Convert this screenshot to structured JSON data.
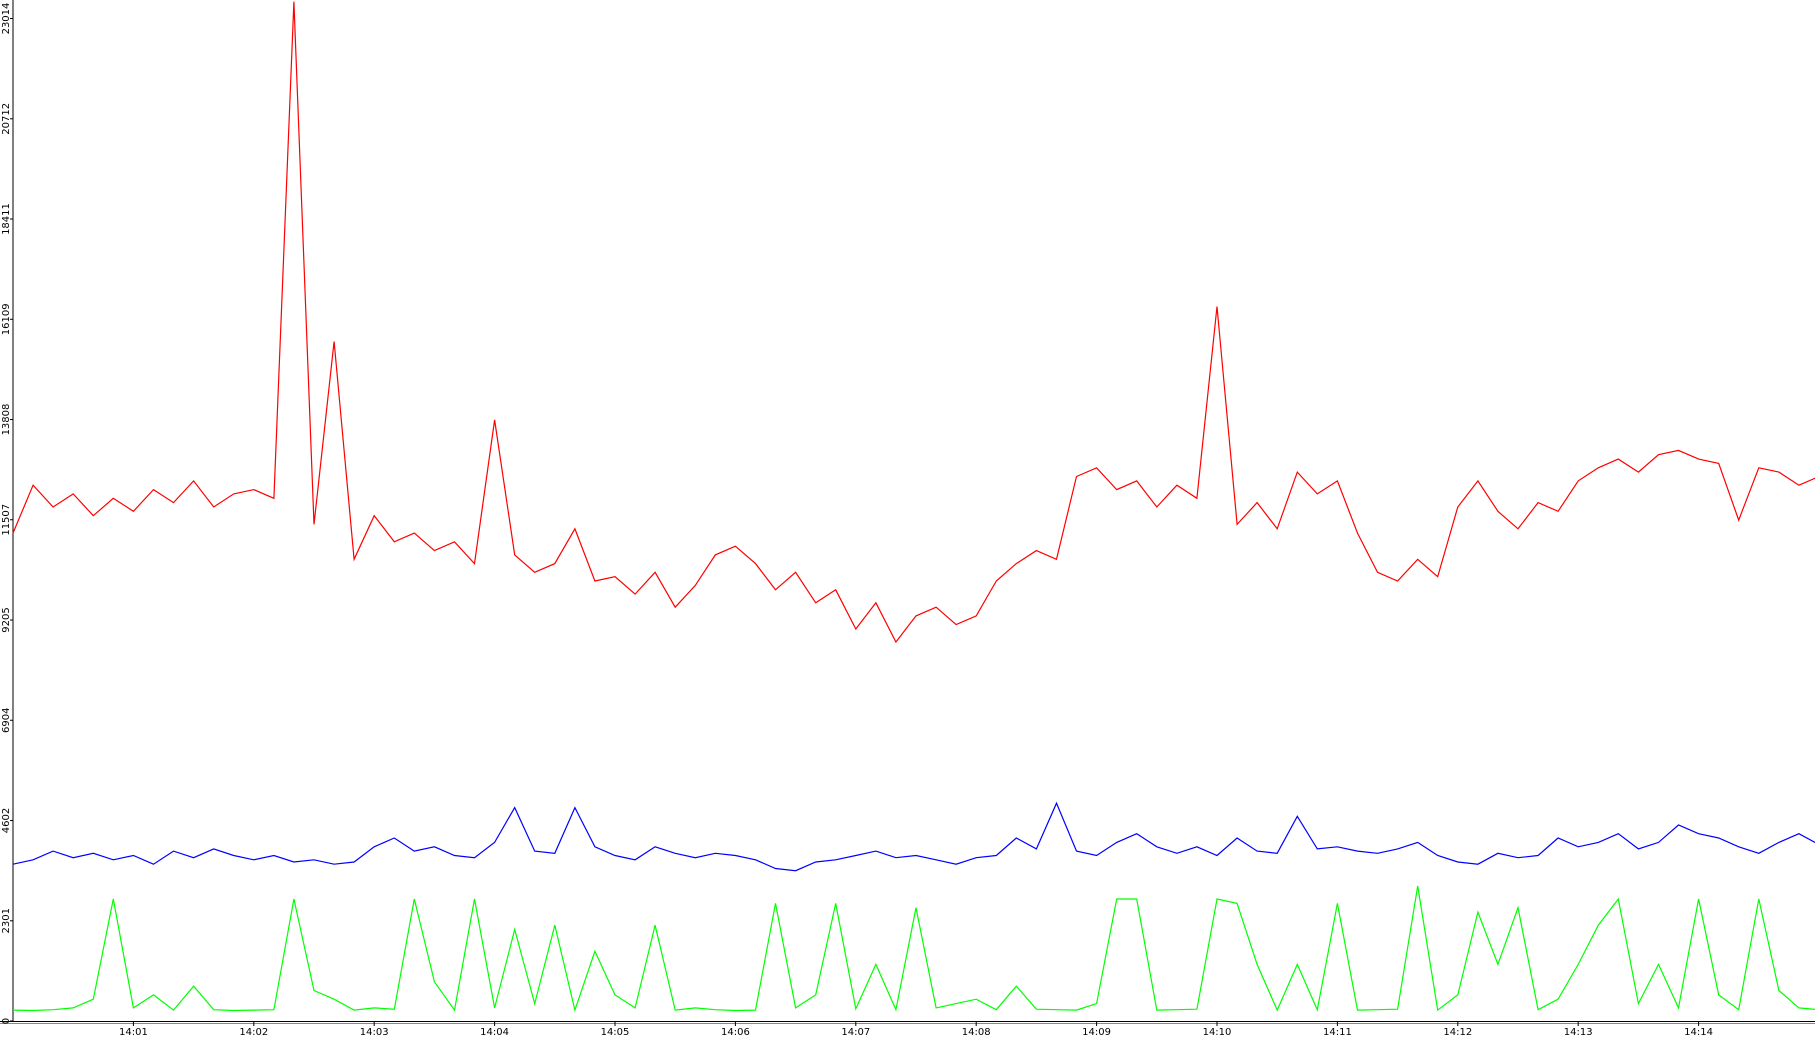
{
  "chart_data": {
    "type": "line",
    "x": [
      "14:00:00",
      "14:00:10",
      "14:00:20",
      "14:00:30",
      "14:00:40",
      "14:00:50",
      "14:01:00",
      "14:01:10",
      "14:01:20",
      "14:01:30",
      "14:01:40",
      "14:01:50",
      "14:02:00",
      "14:02:10",
      "14:02:20",
      "14:02:30",
      "14:02:40",
      "14:02:50",
      "14:03:00",
      "14:03:10",
      "14:03:20",
      "14:03:30",
      "14:03:40",
      "14:03:50",
      "14:04:00",
      "14:04:10",
      "14:04:20",
      "14:04:30",
      "14:04:40",
      "14:04:50",
      "14:05:00",
      "14:05:10",
      "14:05:20",
      "14:05:30",
      "14:05:40",
      "14:05:50",
      "14:06:00",
      "14:06:10",
      "14:06:20",
      "14:06:30",
      "14:06:40",
      "14:06:50",
      "14:07:00",
      "14:07:10",
      "14:07:20",
      "14:07:30",
      "14:07:40",
      "14:07:50",
      "14:08:00",
      "14:08:10",
      "14:08:20",
      "14:08:30",
      "14:08:40",
      "14:08:50",
      "14:09:00",
      "14:09:10",
      "14:09:20",
      "14:09:30",
      "14:09:40",
      "14:09:50",
      "14:10:00",
      "14:10:10",
      "14:10:20",
      "14:10:30",
      "14:10:40",
      "14:10:50",
      "14:11:00",
      "14:11:10",
      "14:11:20",
      "14:11:30",
      "14:11:40",
      "14:11:50",
      "14:12:00",
      "14:12:10",
      "14:12:20",
      "14:12:30",
      "14:12:40",
      "14:12:50",
      "14:13:00",
      "14:13:10",
      "14:13:20",
      "14:13:30",
      "14:13:40",
      "14:13:50",
      "14:14:00",
      "14:14:10",
      "14:14:20",
      "14:14:30",
      "14:14:40",
      "14:14:50",
      "14:15:00"
    ],
    "series": [
      {
        "color": "#ff0000",
        "values": [
          11200,
          12300,
          11800,
          12100,
          11600,
          12000,
          11700,
          12200,
          11900,
          12400,
          11800,
          12100,
          12200,
          12000,
          23400,
          11400,
          15600,
          10600,
          11600,
          11000,
          11200,
          10800,
          11000,
          10500,
          13800,
          10700,
          10300,
          10500,
          11300,
          10100,
          10200,
          9800,
          10300,
          9500,
          10000,
          10700,
          10900,
          10500,
          9900,
          10300,
          9600,
          9900,
          9000,
          9600,
          8700,
          9300,
          9500,
          9100,
          9300,
          10100,
          10500,
          10800,
          10600,
          12500,
          12700,
          12200,
          12400,
          11800,
          12300,
          12000,
          16400,
          11400,
          11900,
          11300,
          12600,
          12100,
          12400,
          11200,
          10300,
          10100,
          10600,
          10200,
          11800,
          12400,
          11700,
          11300,
          11900,
          11700,
          12400,
          12700,
          12900,
          12600,
          13000,
          13100,
          12900,
          12800,
          11500,
          12700,
          12600,
          12300,
          12500
        ]
      },
      {
        "color": "#0000ff",
        "values": [
          3600,
          3700,
          3900,
          3750,
          3850,
          3700,
          3800,
          3600,
          3900,
          3750,
          3950,
          3800,
          3700,
          3800,
          3650,
          3700,
          3600,
          3650,
          4000,
          4200,
          3900,
          4000,
          3800,
          3750,
          4100,
          4900,
          3900,
          3850,
          4900,
          4000,
          3800,
          3700,
          4000,
          3850,
          3750,
          3850,
          3800,
          3700,
          3500,
          3450,
          3650,
          3700,
          3800,
          3900,
          3750,
          3800,
          3700,
          3600,
          3750,
          3800,
          4200,
          3950,
          5000,
          3900,
          3800,
          4100,
          4300,
          4000,
          3850,
          4000,
          3800,
          4200,
          3900,
          3850,
          4700,
          3950,
          4000,
          3900,
          3850,
          3950,
          4100,
          3800,
          3650,
          3600,
          3850,
          3750,
          3800,
          4200,
          4000,
          4100,
          4300,
          3950,
          4100,
          4500,
          4300,
          4200,
          4000,
          3850,
          4100,
          4300,
          4050
        ]
      },
      {
        "color": "#00ff00",
        "values": [
          250,
          240,
          260,
          300,
          500,
          2800,
          300,
          600,
          250,
          800,
          260,
          240,
          250,
          260,
          2800,
          700,
          500,
          250,
          300,
          270,
          2800,
          900,
          250,
          2800,
          300,
          2100,
          400,
          2200,
          250,
          1600,
          600,
          300,
          2200,
          250,
          300,
          260,
          240,
          250,
          2700,
          300,
          600,
          2700,
          280,
          1300,
          260,
          2600,
          300,
          400,
          500,
          260,
          800,
          270,
          260,
          250,
          400,
          2800,
          2800,
          250,
          260,
          270,
          2800,
          2700,
          1300,
          250,
          1300,
          260,
          2700,
          250,
          260,
          270,
          3100,
          250,
          600,
          2500,
          1300,
          2600,
          260,
          500,
          1300,
          2200,
          2800,
          400,
          1300,
          300,
          2800,
          600,
          260,
          2800,
          700,
          300,
          260
        ]
      }
    ],
    "xlim": [
      "14:00",
      "14:15"
    ],
    "xticks": [
      "14:01",
      "14:02",
      "14:03",
      "14:04",
      "14:05",
      "14:06",
      "14:07",
      "14:08",
      "14:09",
      "14:10",
      "14:11",
      "14:12",
      "14:13",
      "14:14"
    ],
    "ylim": [
      0,
      23439
    ],
    "yticks": [
      0,
      2301,
      4602,
      6904,
      9205,
      11507,
      13808,
      16109,
      18411,
      20712,
      23014
    ]
  }
}
